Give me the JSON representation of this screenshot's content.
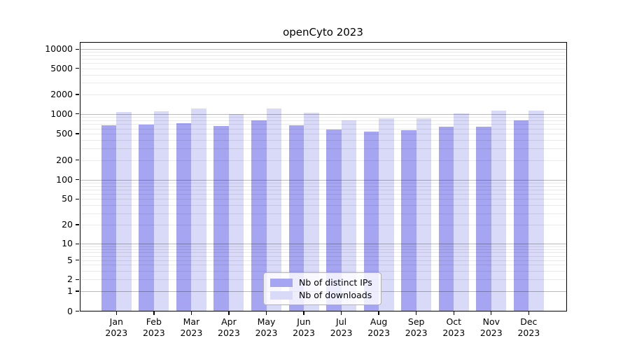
{
  "chart_data": {
    "type": "bar",
    "title": "openCyto 2023",
    "xlabel": "",
    "ylabel": "",
    "yscale": "symlog",
    "grid": "horizontal-log-minor-and-major",
    "legend_position": "bottom-center-inside",
    "x_year": "2023",
    "categories": [
      "Jan",
      "Feb",
      "Mar",
      "Apr",
      "May",
      "Jun",
      "Jul",
      "Aug",
      "Sep",
      "Oct",
      "Nov",
      "Dec"
    ],
    "y_ticks": [
      0,
      1,
      2,
      5,
      10,
      20,
      50,
      100,
      200,
      500,
      1000,
      2000,
      5000,
      10000
    ],
    "ylim": [
      0,
      14000
    ],
    "series": [
      {
        "name": "Nb of distinct IPs",
        "color": "#a5a5f2",
        "values": [
          670,
          690,
          720,
          660,
          790,
          670,
          585,
          540,
          570,
          635,
          645,
          800
        ]
      },
      {
        "name": "Nb of downloads",
        "color": "#d9d9f8",
        "values": [
          1070,
          1110,
          1220,
          1000,
          1200,
          1035,
          800,
          865,
          865,
          1010,
          1130,
          1130
        ]
      }
    ],
    "colors": {
      "grid_minor": "#eaeaea",
      "grid_major": "#bababa",
      "axis": "#000000",
      "text": "#000000",
      "background": "#ffffff"
    }
  }
}
